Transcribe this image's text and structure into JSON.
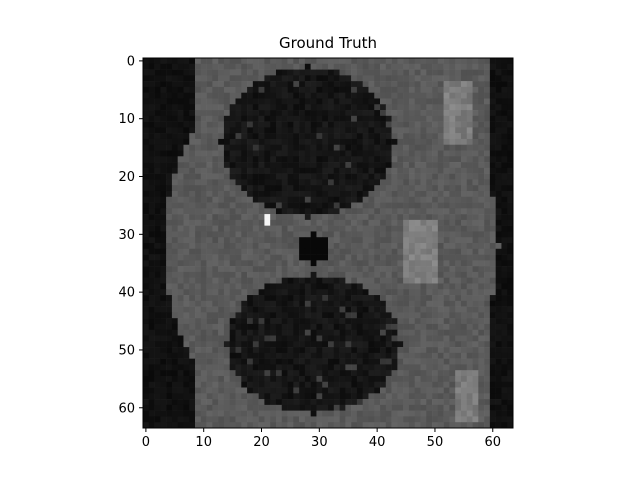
{
  "figure": {
    "title": "Ground Truth"
  },
  "axes": {
    "x_ticks": [
      "0",
      "10",
      "20",
      "30",
      "40",
      "50",
      "60"
    ],
    "y_ticks": [
      "0",
      "10",
      "20",
      "30",
      "40",
      "50",
      "60"
    ],
    "x_tick_values": [
      0,
      10,
      20,
      30,
      40,
      50,
      60
    ],
    "y_tick_values": [
      0,
      10,
      20,
      30,
      40,
      50,
      60
    ],
    "xlim": [
      -0.5,
      63.5
    ],
    "ylim": [
      63.5,
      -0.5
    ]
  },
  "image": {
    "grid_size": 64,
    "colormap": "gray"
  }
}
